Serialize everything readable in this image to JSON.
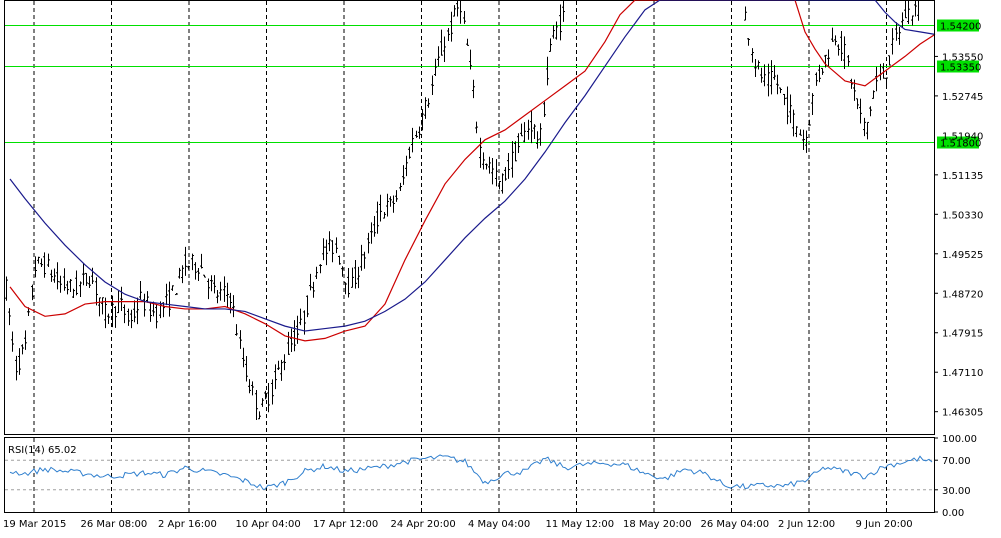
{
  "chart_data": [
    {
      "type": "candlestick",
      "title": "",
      "price_axis": {
        "range": [
          1.4585,
          1.5468
        ],
        "tick_labels": [
          "1.53550",
          "1.52745",
          "1.51135",
          "1.50330",
          "1.49525",
          "1.48720",
          "1.47915",
          "1.47110",
          "1.46305"
        ],
        "tick_values": [
          1.5355,
          1.52745,
          1.51135,
          1.5033,
          1.49525,
          1.4872,
          1.47915,
          1.4711,
          1.46305
        ]
      },
      "time_axis": {
        "labels": [
          "19 Mar 2015",
          "26 Mar 08:00",
          "2 Apr 16:00",
          "10 Apr 04:00",
          "17 Apr 12:00",
          "24 Apr 20:00",
          "4 May 04:00",
          "11 May 12:00",
          "18 May 20:00",
          "26 May 04:00",
          "2 Jun 12:00",
          "9 Jun 20:00"
        ]
      },
      "levels": [
        {
          "label": "1.54200",
          "value": 1.542,
          "color": "#00e000"
        },
        {
          "label": "1.53350",
          "value": 1.5335,
          "color": "#00e000"
        },
        {
          "label": "1.51800",
          "value": 1.518,
          "color": "#00e000"
        }
      ],
      "current_price_label": "1.51940",
      "price_path": [
        [
          0,
          1.49
        ],
        [
          10,
          1.472
        ],
        [
          20,
          1.476
        ],
        [
          30,
          1.493
        ],
        [
          40,
          1.493
        ],
        [
          55,
          1.489
        ],
        [
          70,
          1.488
        ],
        [
          85,
          1.491
        ],
        [
          100,
          1.483
        ],
        [
          115,
          1.485
        ],
        [
          125,
          1.481
        ],
        [
          135,
          1.486
        ],
        [
          150,
          1.483
        ],
        [
          165,
          1.486
        ],
        [
          180,
          1.493
        ],
        [
          195,
          1.493
        ],
        [
          210,
          1.487
        ],
        [
          225,
          1.487
        ],
        [
          235,
          1.476
        ],
        [
          245,
          1.468
        ],
        [
          255,
          1.463
        ],
        [
          265,
          1.467
        ],
        [
          275,
          1.472
        ],
        [
          285,
          1.477
        ],
        [
          295,
          1.48
        ],
        [
          305,
          1.487
        ],
        [
          315,
          1.495
        ],
        [
          330,
          1.497
        ],
        [
          345,
          1.488
        ],
        [
          355,
          1.493
        ],
        [
          365,
          1.498
        ],
        [
          375,
          1.504
        ],
        [
          385,
          1.505
        ],
        [
          395,
          1.508
        ],
        [
          405,
          1.517
        ],
        [
          415,
          1.522
        ],
        [
          425,
          1.528
        ],
        [
          435,
          1.536
        ],
        [
          445,
          1.541
        ],
        [
          455,
          1.547
        ],
        [
          465,
          1.533
        ],
        [
          475,
          1.516
        ],
        [
          485,
          1.513
        ],
        [
          495,
          1.509
        ],
        [
          505,
          1.514
        ],
        [
          515,
          1.518
        ],
        [
          525,
          1.522
        ],
        [
          535,
          1.518
        ],
        [
          545,
          1.538
        ],
        [
          560,
          1.545
        ],
        [
          740,
          1.544
        ],
        [
          750,
          1.534
        ],
        [
          760,
          1.53
        ],
        [
          770,
          1.531
        ],
        [
          780,
          1.526
        ],
        [
          790,
          1.522
        ],
        [
          800,
          1.518
        ],
        [
          810,
          1.53
        ],
        [
          820,
          1.535
        ],
        [
          830,
          1.54
        ],
        [
          840,
          1.536
        ],
        [
          850,
          1.527
        ],
        [
          860,
          1.52
        ],
        [
          870,
          1.53
        ],
        [
          880,
          1.532
        ],
        [
          890,
          1.539
        ],
        [
          900,
          1.544
        ],
        [
          915,
          1.546
        ]
      ],
      "series": [
        {
          "name": "",
          "color": "#cc0000",
          "points": [
            [
              5,
              1.4885
            ],
            [
              20,
              1.4845
            ],
            [
              40,
              1.4825
            ],
            [
              60,
              1.483
            ],
            [
              80,
              1.485
            ],
            [
              100,
              1.4855
            ],
            [
              120,
              1.4855
            ],
            [
              140,
              1.4855
            ],
            [
              160,
              1.4845
            ],
            [
              180,
              1.484
            ],
            [
              200,
              1.484
            ],
            [
              220,
              1.4845
            ],
            [
              240,
              1.483
            ],
            [
              260,
              1.481
            ],
            [
              280,
              1.4785
            ],
            [
              300,
              1.4775
            ],
            [
              320,
              1.478
            ],
            [
              340,
              1.4795
            ],
            [
              360,
              1.4805
            ],
            [
              380,
              1.485
            ],
            [
              400,
              1.494
            ],
            [
              420,
              1.502
            ],
            [
              440,
              1.5095
            ],
            [
              460,
              1.5145
            ],
            [
              480,
              1.5185
            ],
            [
              500,
              1.5205
            ],
            [
              520,
              1.5235
            ],
            [
              540,
              1.5265
            ],
            [
              560,
              1.5295
            ],
            [
              580,
              1.5325
            ],
            [
              600,
              1.5385
            ],
            [
              615,
              1.544
            ],
            [
              630,
              1.547
            ],
            [
              790,
              1.547
            ],
            [
              800,
              1.5405
            ],
            [
              810,
              1.537
            ],
            [
              820,
              1.534
            ],
            [
              840,
              1.5305
            ],
            [
              860,
              1.5295
            ],
            [
              880,
              1.5325
            ],
            [
              900,
              1.5355
            ],
            [
              915,
              1.538
            ],
            [
              930,
              1.54
            ]
          ]
        },
        {
          "name": "",
          "color": "#1a1a8c",
          "points": [
            [
              5,
              1.5105
            ],
            [
              20,
              1.5065
            ],
            [
              40,
              1.5015
            ],
            [
              60,
              1.497
            ],
            [
              80,
              1.493
            ],
            [
              100,
              1.4895
            ],
            [
              120,
              1.487
            ],
            [
              140,
              1.4855
            ],
            [
              160,
              1.485
            ],
            [
              180,
              1.4845
            ],
            [
              200,
              1.484
            ],
            [
              220,
              1.484
            ],
            [
              240,
              1.4835
            ],
            [
              260,
              1.482
            ],
            [
              280,
              1.4805
            ],
            [
              300,
              1.4795
            ],
            [
              320,
              1.48
            ],
            [
              340,
              1.4805
            ],
            [
              360,
              1.4815
            ],
            [
              380,
              1.4835
            ],
            [
              400,
              1.486
            ],
            [
              420,
              1.4895
            ],
            [
              440,
              1.494
            ],
            [
              460,
              1.4985
            ],
            [
              480,
              1.5025
            ],
            [
              500,
              1.506
            ],
            [
              520,
              1.5105
            ],
            [
              540,
              1.516
            ],
            [
              560,
              1.522
            ],
            [
              580,
              1.5275
            ],
            [
              600,
              1.5335
            ],
            [
              620,
              1.5395
            ],
            [
              640,
              1.545
            ],
            [
              655,
              1.547
            ],
            [
              870,
              1.547
            ],
            [
              880,
              1.5445
            ],
            [
              890,
              1.5425
            ],
            [
              900,
              1.541
            ],
            [
              915,
              1.5405
            ],
            [
              930,
              1.54
            ]
          ]
        }
      ]
    },
    {
      "type": "line",
      "title": "RSI(14) 65.02",
      "indicator": "RSI(14)",
      "current_value": 65.02,
      "ylim": [
        0,
        100
      ],
      "tick_labels": [
        "100.00",
        "70.00",
        "30.00",
        "0.00"
      ],
      "tick_values": [
        100,
        70,
        30,
        0
      ],
      "reference_levels": [
        70,
        30
      ],
      "series": [
        {
          "name": "",
          "color": "#2f7fce",
          "points": [
            [
              5,
              55
            ],
            [
              20,
              52
            ],
            [
              40,
              58
            ],
            [
              60,
              55
            ],
            [
              80,
              52
            ],
            [
              100,
              48
            ],
            [
              120,
              50
            ],
            [
              140,
              53
            ],
            [
              160,
              50
            ],
            [
              180,
              60
            ],
            [
              200,
              55
            ],
            [
              220,
              50
            ],
            [
              240,
              42
            ],
            [
              260,
              32
            ],
            [
              280,
              40
            ],
            [
              300,
              55
            ],
            [
              320,
              62
            ],
            [
              340,
              55
            ],
            [
              360,
              58
            ],
            [
              380,
              62
            ],
            [
              400,
              68
            ],
            [
              420,
              72
            ],
            [
              440,
              74
            ],
            [
              460,
              68
            ],
            [
              480,
              40
            ],
            [
              500,
              52
            ],
            [
              520,
              55
            ],
            [
              540,
              72
            ],
            [
              560,
              60
            ],
            [
              580,
              64
            ],
            [
              600,
              66
            ],
            [
              620,
              64
            ],
            [
              640,
              52
            ],
            [
              660,
              45
            ],
            [
              680,
              58
            ],
            [
              700,
              52
            ],
            [
              720,
              36
            ],
            [
              740,
              34
            ],
            [
              760,
              36
            ],
            [
              780,
              35
            ],
            [
              800,
              42
            ],
            [
              820,
              60
            ],
            [
              840,
              55
            ],
            [
              860,
              48
            ],
            [
              880,
              62
            ],
            [
              900,
              68
            ],
            [
              915,
              72
            ],
            [
              930,
              65
            ]
          ]
        }
      ]
    }
  ]
}
